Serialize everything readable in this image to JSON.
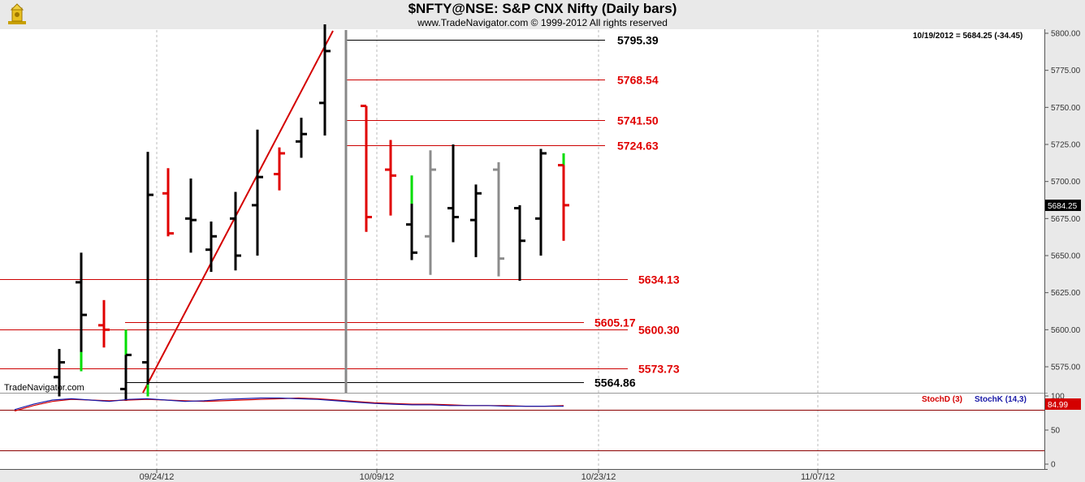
{
  "header": {
    "title": "$NFTY@NSE:  S&P CNX Nifty  (Daily bars)",
    "subtitle": "www.TradeNavigator.com © 1999-2012 All rights reserved",
    "logo_icon": "trade-navigator-logo-icon"
  },
  "price_panel": {
    "info_text": "10/19/2012 = 5684.25 (-34.45)",
    "last_price_label": "5684.25",
    "watermark": "TradeNavigator.com"
  },
  "indicator_panel": {
    "legend": [
      {
        "label": "StochD (3)",
        "color": "#d40000"
      },
      {
        "label": "StochK (14,3)",
        "color": "#1a1aa8"
      }
    ],
    "last_value_label": "84.99",
    "y_ticks": [
      "100",
      "50",
      "0"
    ],
    "reference_levels": [
      80,
      20
    ]
  },
  "colors": {
    "up_bar": "#000000",
    "down_bar": "#e00000",
    "highlight": "#00dd00",
    "gray_bar": "#8c8c8c",
    "fib_line": "#cc0000",
    "background": "#ffffff"
  },
  "chart_data": {
    "type": "ohlc",
    "y_ticks": [
      "5800.00",
      "5775.00",
      "5750.00",
      "5725.00",
      "5700.00",
      "5675.00",
      "5650.00",
      "5625.00",
      "5600.00",
      "5575.00"
    ],
    "ylim": [
      5555,
      5810
    ],
    "x_ticks": [
      "09/24/12",
      "10/09/12",
      "10/23/12",
      "11/07/12"
    ],
    "bars": [
      {
        "high": 5587,
        "low": 5555,
        "open": 5568,
        "close": 5578,
        "color": "black"
      },
      {
        "high": 5652,
        "low": 5572,
        "open": 5632,
        "close": 5610,
        "color": "black",
        "accent_low": 5585
      },
      {
        "high": 5620,
        "low": 5588,
        "open": 5603,
        "close": 5600,
        "color": "red"
      },
      {
        "high": 5600,
        "low": 5552,
        "open": 5560,
        "close": 5583,
        "color": "black",
        "accent_high": 5600,
        "accent_low": 5583
      },
      {
        "high": 5720,
        "low": 5555,
        "open": 5578,
        "close": 5691,
        "color": "black",
        "accent_low": 5563
      },
      {
        "high": 5709,
        "low": 5663,
        "open": 5692,
        "close": 5665,
        "color": "red"
      },
      {
        "high": 5702,
        "low": 5652,
        "open": 5675,
        "close": 5674,
        "color": "black"
      },
      {
        "high": 5673,
        "low": 5639,
        "open": 5654,
        "close": 5663,
        "color": "black"
      },
      {
        "high": 5693,
        "low": 5640,
        "open": 5675,
        "close": 5650,
        "color": "black"
      },
      {
        "high": 5735,
        "low": 5650,
        "open": 5684,
        "close": 5703,
        "color": "black",
        "accent_low": 5650
      },
      {
        "high": 5723,
        "low": 5694,
        "open": 5705,
        "close": 5719,
        "color": "red"
      },
      {
        "high": 5743,
        "low": 5716,
        "open": 5727,
        "close": 5732,
        "color": "black"
      },
      {
        "high": 5806,
        "low": 5731,
        "open": 5753,
        "close": 5788,
        "color": "black",
        "accent_low": 5731
      },
      {
        "high": 5751,
        "low": 5666,
        "open": 5751,
        "close": 5676,
        "color": "red"
      },
      {
        "high": 5728,
        "low": 5677,
        "open": 5708,
        "close": 5704,
        "color": "red"
      },
      {
        "high": 5704,
        "low": 5647,
        "open": 5671,
        "close": 5652,
        "color": "black",
        "accent_high": 5704,
        "accent_low": 5685
      },
      {
        "high": 5721,
        "low": 5637,
        "open": 5663,
        "close": 5708,
        "color": "gray"
      },
      {
        "high": 5725,
        "low": 5659,
        "open": 5682,
        "close": 5676,
        "color": "black"
      },
      {
        "high": 5698,
        "low": 5649,
        "open": 5674,
        "close": 5692,
        "color": "black"
      },
      {
        "high": 5713,
        "low": 5636,
        "open": 5708,
        "close": 5648,
        "color": "gray"
      },
      {
        "high": 5684,
        "low": 5633,
        "open": 5682,
        "close": 5660,
        "color": "black"
      },
      {
        "high": 5722,
        "low": 5650,
        "open": 5675,
        "close": 5719,
        "color": "black"
      },
      {
        "high": 5719,
        "low": 5660,
        "open": 5711,
        "close": 5684,
        "color": "red",
        "accent_high": 5719,
        "accent_low": 5711
      }
    ],
    "stochD": [
      78,
      86,
      92,
      95,
      94,
      93,
      94,
      95,
      94,
      93,
      92,
      93,
      94,
      95,
      96,
      97,
      96,
      94,
      92,
      90,
      89,
      88,
      88,
      87,
      86,
      86,
      86,
      85,
      85,
      86
    ],
    "stochK": [
      80,
      88,
      94,
      96,
      94,
      92,
      95,
      96,
      94,
      92,
      93,
      95,
      96,
      97,
      97,
      96,
      95,
      93,
      91,
      89,
      88,
      87,
      87,
      86,
      86,
      86,
      85,
      85,
      85,
      85
    ]
  },
  "annotations": [
    {
      "label": "5795.39",
      "value": 5795.39,
      "color": "#000000"
    },
    {
      "label": "5768.54",
      "value": 5768.54,
      "color": "#e00000"
    },
    {
      "label": "5741.50",
      "value": 5741.5,
      "color": "#e00000"
    },
    {
      "label": "5724.63",
      "value": 5724.63,
      "color": "#e00000"
    },
    {
      "label": "5634.13",
      "value": 5634.13,
      "color": "#e00000"
    },
    {
      "label": "5605.17",
      "value": 5605.17,
      "color": "#e00000"
    },
    {
      "label": "5600.30",
      "value": 5600.3,
      "color": "#e00000"
    },
    {
      "label": "5573.73",
      "value": 5573.73,
      "color": "#e00000"
    },
    {
      "label": "5564.86",
      "value": 5564.86,
      "color": "#000000"
    }
  ]
}
